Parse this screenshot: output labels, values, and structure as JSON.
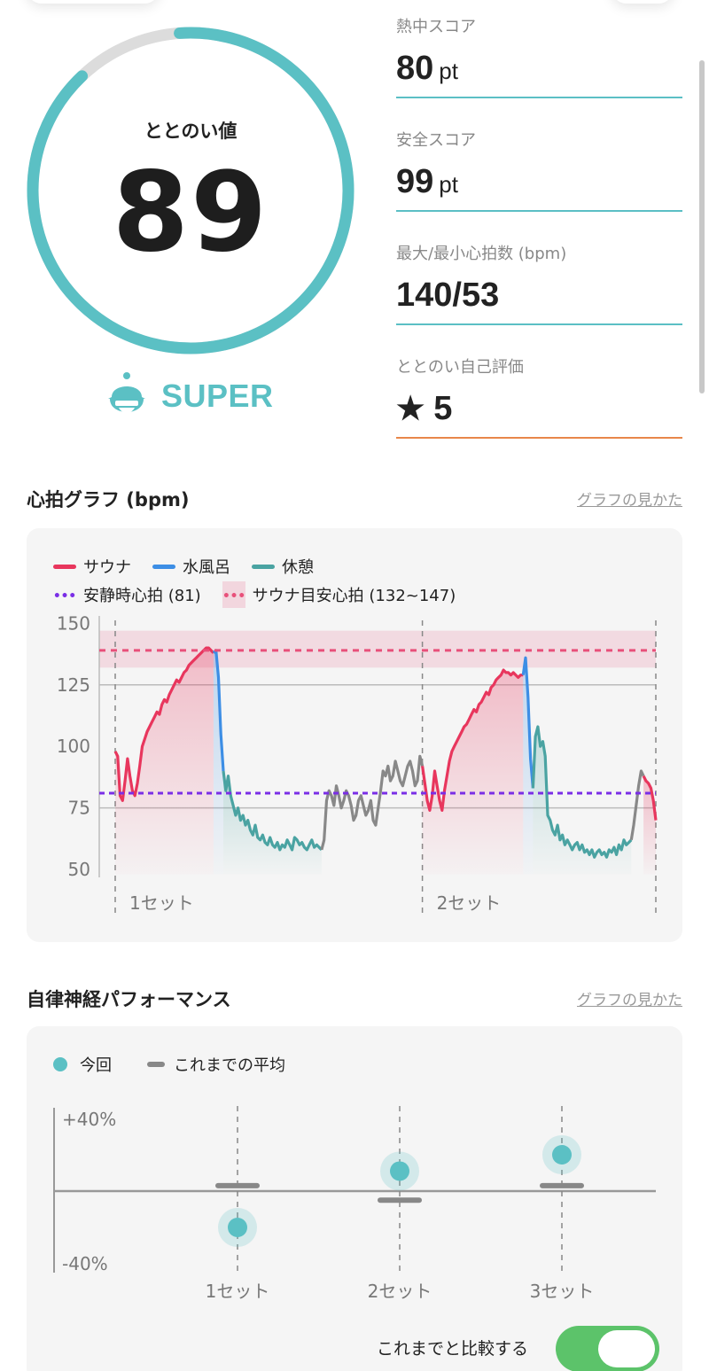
{
  "summary": {
    "gauge_label": "ととのい値",
    "gauge_value": "89",
    "gauge_fill": 0.89,
    "rank": "SUPER",
    "rank_icon": "sauna-hat-face-icon"
  },
  "stats": [
    {
      "label": "熱中スコア",
      "value": "80",
      "unit": "pt"
    },
    {
      "label": "安全スコア",
      "value": "99",
      "unit": "pt"
    },
    {
      "label": "最大/最小心拍数 (bpm)",
      "value": "140/53",
      "unit": ""
    },
    {
      "label": "ととのい自己評価",
      "value": "5",
      "unit": "",
      "icon": "star-icon"
    }
  ],
  "hr_section": {
    "title": "心拍グラフ (bpm)",
    "link": "グラフの見かた",
    "legend": {
      "sauna": "サウナ",
      "cold_bath": "水風呂",
      "rest": "休憩",
      "resting_hr": "安静時心拍 (81)",
      "target_hr": "サウナ目安心拍 (132~147)"
    }
  },
  "ans_section": {
    "title": "自律神経パフォーマンス",
    "link": "グラフの見かた",
    "legend": {
      "current": "今回",
      "average": "これまでの平均"
    },
    "toggle_label": "これまでと比較する",
    "toggle_on": true
  },
  "colors": {
    "teal": "#5bc0c4",
    "sauna": "#e8365d",
    "cold_bath": "#3d8ee5",
    "rest": "#4aa3a2",
    "resting_hr": "#7a2ee6",
    "target_hr": "#e8507a",
    "toggle": "#5cc36a"
  },
  "chart_data": [
    {
      "type": "line",
      "ylabel": "",
      "ylim": [
        45,
        153
      ],
      "y_ticks": [
        "150",
        "125",
        "100",
        "75",
        "50"
      ],
      "resting_hr": 81,
      "target_range": [
        132,
        147
      ],
      "target_line": 139,
      "sets": [
        "1セット",
        "2セット"
      ],
      "series": [
        {
          "name": "サウナ",
          "segment": "sauna",
          "x": [
            0,
            1,
            2,
            3,
            4,
            5,
            6,
            7,
            8,
            9,
            10,
            11,
            12,
            13,
            14,
            15,
            16,
            17,
            18,
            19,
            20,
            21,
            22,
            23,
            24,
            25,
            26,
            27,
            28,
            29,
            30,
            31,
            32,
            33,
            34,
            35,
            36,
            37,
            38,
            39,
            40
          ],
          "y": [
            98,
            96,
            80,
            78,
            86,
            95,
            88,
            82,
            80,
            85,
            92,
            100,
            103,
            106,
            108,
            110,
            112,
            114,
            113,
            117,
            119,
            118,
            121,
            123,
            125,
            127,
            126,
            128,
            130,
            131,
            133,
            134,
            135,
            136,
            137,
            138,
            139,
            140,
            140,
            139,
            138
          ]
        },
        {
          "name": "水風呂",
          "segment": "cold",
          "x": [
            40,
            41,
            42,
            43,
            44
          ],
          "y": [
            138,
            139,
            128,
            105,
            90
          ]
        },
        {
          "name": "休憩",
          "segment": "rest",
          "x": [
            44,
            45,
            46,
            47,
            48,
            49,
            50,
            51,
            52,
            53,
            54,
            55,
            56,
            57,
            58,
            59,
            60,
            61,
            62,
            63,
            64,
            65,
            66,
            67,
            68,
            69,
            70,
            71,
            72,
            73,
            74,
            75,
            76,
            77,
            78,
            79,
            80,
            81,
            82,
            83,
            84
          ],
          "y": [
            90,
            82,
            88,
            80,
            76,
            72,
            75,
            70,
            72,
            68,
            70,
            66,
            64,
            68,
            63,
            62,
            64,
            61,
            60,
            63,
            60,
            59,
            61,
            58,
            60,
            59,
            62,
            60,
            58,
            63,
            62,
            60,
            61,
            59,
            58,
            60,
            62,
            59,
            60,
            59,
            58
          ]
        },
        {
          "name": "",
          "segment": "transition",
          "x": [
            84,
            85,
            86,
            87,
            88,
            89,
            90,
            91,
            92,
            93,
            94,
            95,
            96,
            97,
            98,
            99,
            100,
            101,
            102,
            103,
            104,
            105,
            106,
            107,
            108,
            109,
            110,
            111,
            112,
            113,
            114,
            115,
            116,
            117,
            118,
            119,
            120,
            121,
            122,
            123,
            124,
            125
          ],
          "y": [
            58,
            62,
            78,
            82,
            80,
            76,
            84,
            80,
            75,
            78,
            82,
            80,
            76,
            70,
            72,
            78,
            80,
            76,
            72,
            74,
            78,
            70,
            68,
            75,
            82,
            90,
            88,
            92,
            86,
            88,
            94,
            90,
            86,
            84,
            88,
            92,
            94,
            90,
            84,
            86,
            96,
            92
          ]
        },
        {
          "name": "サウナ",
          "segment": "sauna",
          "x": [
            125,
            126,
            127,
            128,
            129,
            130,
            131,
            132,
            133,
            134,
            135,
            136,
            137,
            138,
            139,
            140,
            141,
            142,
            143,
            144,
            145,
            146,
            147,
            148,
            149,
            150,
            151,
            152,
            153,
            154,
            155,
            156,
            157,
            158,
            159,
            160,
            161,
            162,
            163,
            164,
            165,
            166
          ],
          "y": [
            92,
            85,
            78,
            74,
            80,
            90,
            84,
            78,
            74,
            82,
            88,
            94,
            98,
            100,
            102,
            104,
            106,
            108,
            109,
            111,
            113,
            115,
            114,
            117,
            118,
            120,
            122,
            121,
            124,
            125,
            127,
            128,
            129,
            131,
            130,
            130,
            129,
            130,
            129,
            128,
            129,
            129
          ]
        },
        {
          "name": "水風呂",
          "segment": "cold",
          "x": [
            166,
            167,
            168,
            169,
            170
          ],
          "y": [
            129,
            136,
            120,
            95,
            83
          ]
        },
        {
          "name": "休憩",
          "segment": "rest",
          "x": [
            170,
            171,
            172,
            173,
            174,
            175,
            176,
            177,
            178,
            179,
            180,
            181,
            182,
            183,
            184,
            185,
            186,
            187,
            188,
            189,
            190,
            191,
            192,
            193,
            194,
            195,
            196,
            197,
            198,
            199,
            200,
            201,
            202,
            203,
            204,
            205,
            206,
            207,
            208,
            209,
            210
          ],
          "y": [
            83,
            104,
            108,
            100,
            102,
            96,
            72,
            70,
            66,
            64,
            68,
            62,
            64,
            60,
            62,
            60,
            58,
            60,
            61,
            58,
            60,
            57,
            58,
            56,
            58,
            55,
            57,
            58,
            56,
            57,
            55,
            58,
            57,
            59,
            56,
            60,
            58,
            62,
            60,
            61,
            62
          ]
        },
        {
          "name": "",
          "segment": "transition",
          "x": [
            210,
            211,
            212,
            213,
            214,
            215
          ],
          "y": [
            62,
            68,
            76,
            84,
            90,
            88
          ]
        },
        {
          "name": "サウナ",
          "segment": "sauna",
          "x": [
            215,
            216,
            217,
            218,
            219,
            220
          ],
          "y": [
            88,
            86,
            85,
            83,
            78,
            70
          ]
        }
      ]
    },
    {
      "type": "scatter",
      "ylim": [
        -40,
        40
      ],
      "y_ticks": [
        "+40%",
        "-40%"
      ],
      "categories": [
        "1セット",
        "2セット",
        "3セット"
      ],
      "series": [
        {
          "name": "今回",
          "values": [
            -20,
            11,
            20
          ]
        },
        {
          "name": "これまでの平均",
          "values": [
            3,
            -5,
            3
          ]
        }
      ]
    }
  ]
}
